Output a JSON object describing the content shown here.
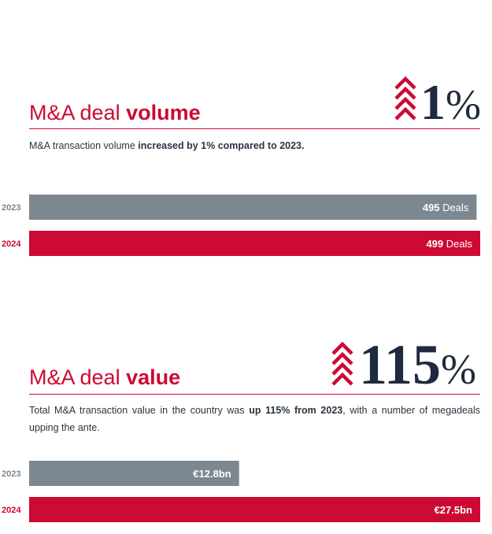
{
  "volume": {
    "title_prefix": "M&A deal ",
    "title_bold": "volume",
    "big_number": "1",
    "big_pct": "%",
    "desc_prefix": "M&A transaction volume ",
    "desc_bold": "increased by 1% compared to 2023.",
    "desc_suffix": ""
  },
  "value": {
    "title_prefix": "M&A deal ",
    "title_bold": "value",
    "big_number": "115",
    "big_pct": "%",
    "desc_prefix": "Total M&A transaction value in the country was ",
    "desc_bold": "up 115% from 2023",
    "desc_suffix": ", with a number of megadeals upping the ante."
  },
  "colors": {
    "accent": "#cc0a33",
    "gray": "#7d8790",
    "navy": "#1e2a3d"
  },
  "chart_data": [
    {
      "type": "bar",
      "orientation": "horizontal",
      "title": "M&A deal volume",
      "categories": [
        "2023",
        "2024"
      ],
      "values": [
        495,
        499
      ],
      "value_labels": [
        "495",
        "499"
      ],
      "unit_labels": [
        "Deals",
        "Deals"
      ],
      "colors": [
        "#7d8790",
        "#cc0a33"
      ],
      "xlim": [
        0,
        499
      ]
    },
    {
      "type": "bar",
      "orientation": "horizontal",
      "title": "M&A deal value",
      "categories": [
        "2023",
        "2024"
      ],
      "values": [
        12.8,
        27.5
      ],
      "value_labels": [
        "€12.8bn",
        "€27.5bn"
      ],
      "unit_labels": [
        "",
        ""
      ],
      "colors": [
        "#7d8790",
        "#cc0a33"
      ],
      "xlim": [
        0,
        27.5
      ]
    }
  ]
}
